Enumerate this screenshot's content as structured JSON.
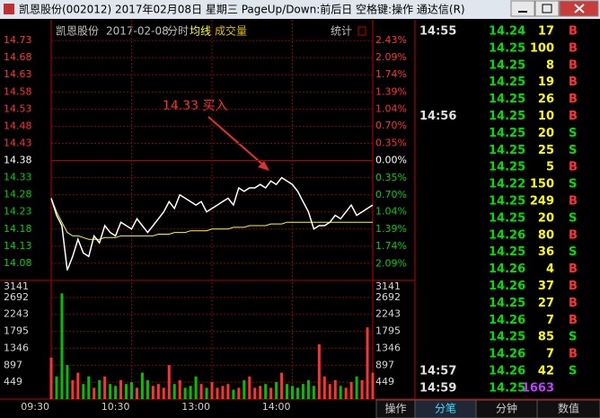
{
  "window": {
    "title": "凯恩股份(002012) 2017年02月08日 星期三 PageUp/Down:前后日 空格键:操作 通达信(R)"
  },
  "header": {
    "stock": "凯恩股份",
    "date": "2017-02-08",
    "stat": "统计"
  },
  "chart_data": {
    "type": "line",
    "prev_close": 14.38,
    "categories": [
      "09:30",
      null,
      null,
      null,
      null,
      null,
      null,
      null,
      null,
      null,
      null,
      null,
      null,
      null,
      null,
      "10:30",
      null,
      null,
      null,
      null,
      null,
      null,
      null,
      null,
      null,
      null,
      null,
      null,
      null,
      null,
      "13:00",
      null,
      null,
      null,
      null,
      null,
      null,
      null,
      null,
      null,
      null,
      null,
      null,
      null,
      null,
      "14:00",
      null,
      null,
      null,
      null,
      null,
      null,
      null,
      null,
      null,
      null,
      null,
      null,
      null,
      null,
      null
    ],
    "series": [
      {
        "name": "分时",
        "color": "#ffffff",
        "values": [
          14.27,
          14.22,
          14.19,
          14.06,
          14.1,
          14.15,
          14.11,
          14.1,
          14.16,
          14.14,
          14.19,
          14.17,
          14.16,
          14.2,
          14.19,
          14.18,
          14.21,
          14.19,
          14.17,
          14.19,
          14.21,
          14.23,
          14.26,
          14.24,
          14.28,
          14.27,
          14.26,
          14.25,
          14.26,
          14.23,
          14.24,
          14.25,
          14.26,
          14.27,
          14.25,
          14.3,
          14.29,
          14.3,
          14.3,
          14.31,
          14.3,
          14.32,
          14.31,
          14.33,
          14.32,
          14.31,
          14.29,
          14.26,
          14.23,
          14.18,
          14.19,
          14.19,
          14.2,
          14.22,
          14.21,
          14.23,
          14.25,
          14.22,
          14.23,
          14.24,
          14.25
        ]
      },
      {
        "name": "均线",
        "color": "#ffff00",
        "values": [
          14.27,
          14.23,
          14.2,
          14.17,
          14.16,
          14.16,
          14.155,
          14.15,
          14.15,
          14.15,
          14.155,
          14.155,
          14.155,
          14.16,
          14.16,
          14.16,
          14.16,
          14.16,
          14.16,
          14.16,
          14.165,
          14.165,
          14.165,
          14.17,
          14.17,
          14.17,
          14.175,
          14.175,
          14.175,
          14.175,
          14.18,
          14.18,
          14.18,
          14.18,
          14.185,
          14.185,
          14.185,
          14.19,
          14.19,
          14.19,
          14.19,
          14.195,
          14.195,
          14.195,
          14.2,
          14.2,
          14.2,
          14.2,
          14.2,
          14.2,
          14.2,
          14.2,
          14.2,
          14.2,
          14.2,
          14.2,
          14.2,
          14.2,
          14.2,
          14.2,
          14.2
        ]
      }
    ],
    "ylim": [
      14.03,
      14.78
    ],
    "yticks": [
      14.73,
      14.68,
      14.63,
      14.58,
      14.53,
      14.48,
      14.43,
      14.38,
      14.33,
      14.28,
      14.23,
      14.18,
      14.13,
      14.08
    ],
    "y2lim": [
      -2.43,
      2.78
    ],
    "y2ticks": [
      {
        "value": 2.43,
        "label": "2.43%"
      },
      {
        "value": 2.09,
        "label": "2.09%"
      },
      {
        "value": 1.74,
        "label": "1.74%"
      },
      {
        "value": 1.39,
        "label": "1.39%"
      },
      {
        "value": 1.04,
        "label": "1.04%"
      },
      {
        "value": 0.7,
        "label": "0.70%"
      },
      {
        "value": 0.35,
        "label": "0.35%"
      },
      {
        "value": 0.0,
        "label": "0.00%"
      },
      {
        "value": -0.35,
        "label": "0.35%"
      },
      {
        "value": -0.7,
        "label": "0.70%"
      },
      {
        "value": -1.04,
        "label": "1.04%"
      },
      {
        "value": -1.39,
        "label": "1.39%"
      },
      {
        "value": -1.74,
        "label": "1.74%"
      },
      {
        "value": -2.09,
        "label": "2.09%"
      }
    ],
    "annotation": "14.33 买入",
    "volume": {
      "name": "成交量",
      "up_color": "#ff3232",
      "down_color": "#00c000",
      "values": [
        1100,
        600,
        2800,
        900,
        500,
        700,
        400,
        600,
        300,
        500,
        600,
        400,
        350,
        500,
        400,
        450,
        300,
        700,
        500,
        350,
        400,
        300,
        900,
        400,
        500,
        300,
        350,
        600,
        400,
        300,
        450,
        300,
        350,
        400,
        250,
        300,
        500,
        600,
        300,
        350,
        400,
        300,
        450,
        700,
        400,
        350,
        300,
        400,
        500,
        350,
        1450,
        600,
        400,
        500,
        350,
        300,
        450,
        600,
        500,
        1900,
        700
      ],
      "ylim": [
        0,
        3141
      ],
      "yticks": [
        3141,
        2692,
        2243,
        1795,
        1346,
        897,
        449
      ]
    }
  },
  "trades": [
    {
      "time": "14:55",
      "price": 14.24,
      "volume": 17,
      "side": "B"
    },
    {
      "price": 14.25,
      "volume": 100,
      "side": "B"
    },
    {
      "price": 14.25,
      "volume": 8,
      "side": "B"
    },
    {
      "price": 14.25,
      "volume": 19,
      "side": "B"
    },
    {
      "price": 14.25,
      "volume": 26,
      "side": "B"
    },
    {
      "time": "14:56",
      "price": 14.25,
      "volume": 10,
      "side": "B"
    },
    {
      "price": 14.25,
      "volume": 20,
      "side": "S"
    },
    {
      "price": 14.25,
      "volume": 25,
      "side": "S"
    },
    {
      "price": 14.25,
      "volume": 5,
      "side": "B"
    },
    {
      "price": 14.22,
      "volume": 150,
      "side": "S"
    },
    {
      "price": 14.25,
      "volume": 249,
      "side": "B"
    },
    {
      "price": 14.25,
      "volume": 20,
      "side": "S"
    },
    {
      "price": 14.26,
      "volume": 80,
      "side": "B"
    },
    {
      "price": 14.25,
      "volume": 36,
      "side": "S"
    },
    {
      "price": 14.26,
      "volume": 4,
      "side": "B"
    },
    {
      "price": 14.26,
      "volume": 37,
      "side": "B"
    },
    {
      "price": 14.25,
      "volume": 27,
      "side": "B"
    },
    {
      "price": 14.26,
      "volume": 7,
      "side": "B"
    },
    {
      "price": 14.25,
      "volume": 85,
      "side": "S"
    },
    {
      "price": 14.26,
      "volume": 7,
      "side": "B"
    },
    {
      "time": "14:57",
      "price": 14.26,
      "volume": 42,
      "side": "S"
    },
    {
      "time": "14:59",
      "price": 14.25,
      "volume": 1663,
      "volume_color": "#c040ff"
    }
  ],
  "tabs": [
    "操作",
    "分笔",
    "分钟",
    "数值"
  ]
}
